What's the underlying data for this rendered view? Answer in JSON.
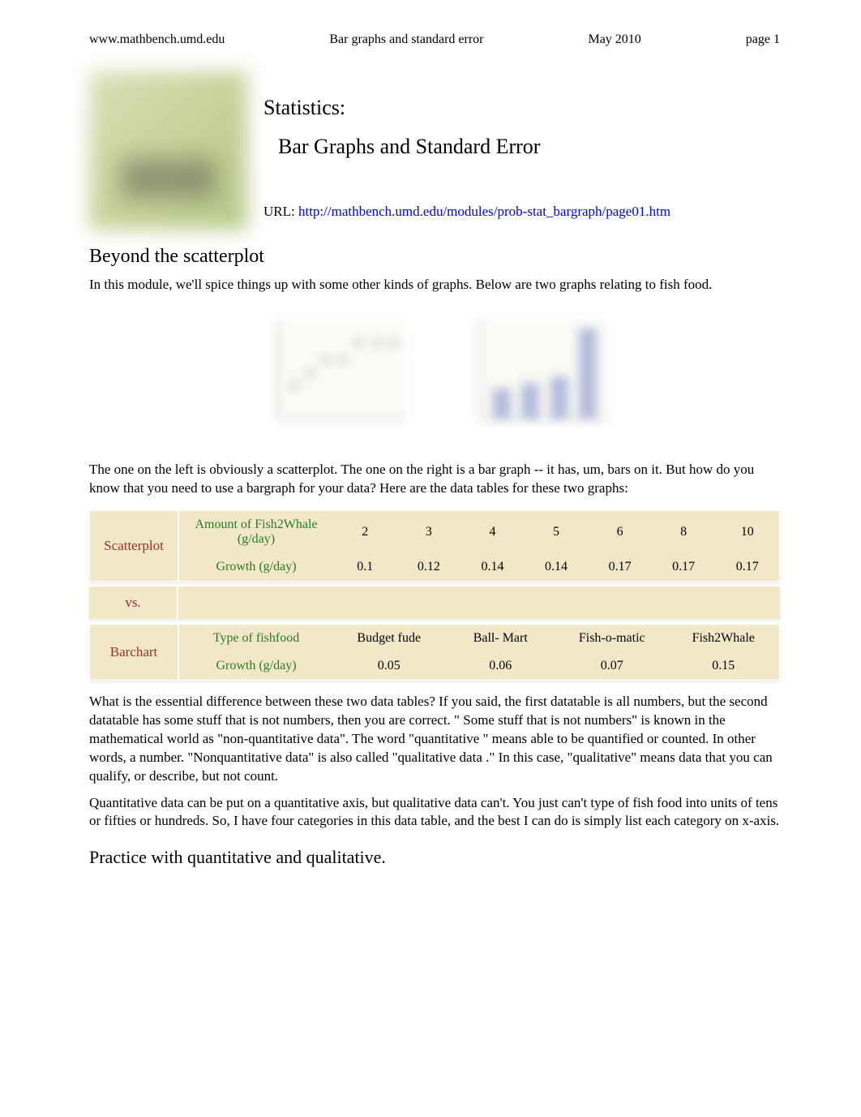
{
  "header": {
    "site": "www.mathbench.umd.edu",
    "topic": "Bar graphs and standard error",
    "date": "May 2010",
    "page": "page 1"
  },
  "title": {
    "line1": "Statistics:",
    "line2": "Bar Graphs and Standard Error",
    "url_label": "URL:  ",
    "url": "http://mathbench.umd.edu/modules/prob-stat_bargraph/page01.htm"
  },
  "section1": "Beyond the scatterplot",
  "para1": "In this module, we'll spice things up with some other kinds of graphs. Below are two graphs relating to fish food.",
  "scatter_preview": {
    "type": "scatter",
    "points": [
      {
        "x": 0.1,
        "y": 0.3
      },
      {
        "x": 0.22,
        "y": 0.42
      },
      {
        "x": 0.35,
        "y": 0.55
      },
      {
        "x": 0.48,
        "y": 0.55
      },
      {
        "x": 0.6,
        "y": 0.72
      },
      {
        "x": 0.75,
        "y": 0.72
      },
      {
        "x": 0.88,
        "y": 0.72
      }
    ],
    "marker_color": "#4a6a4a",
    "background_color": "#f8f6ee",
    "axis_color": "#888888"
  },
  "bar_preview": {
    "type": "bar",
    "values": [
      0.33,
      0.4,
      0.47,
      1.0
    ],
    "bar_color": "#6a7ab8",
    "background_color": "#f8f6ee",
    "axis_color": "#888888"
  },
  "para2": "The one on the left is obviously a scatterplot. The one on the right is a bar graph -- it has, um, bars on it. But how do you know that you need to use a bargraph for your data? Here are the data tables for these two graphs:",
  "tables": {
    "scatter": {
      "label": "Scatterplot",
      "row1_head": "Amount of Fish2Whale (g/day)",
      "row1": [
        "2",
        "3",
        "4",
        "5",
        "6",
        "8",
        "10"
      ],
      "row2_head": "Growth (g/day)",
      "row2": [
        "0.1",
        "0.12",
        "0.14",
        "0.14",
        "0.17",
        "0.17",
        "0.17"
      ]
    },
    "vs": "vs.",
    "bar": {
      "label": "Barchart",
      "row1_head": "Type of fishfood",
      "row1": [
        "Budget fude",
        "Ball- Mart",
        "Fish-o-matic",
        "Fish2Whale"
      ],
      "row2_head": "Growth (g/day)",
      "row2": [
        "0.05",
        "0.06",
        "0.07",
        "0.15"
      ]
    },
    "label_color": "#a03020",
    "rowhead_color": "#2a7a2a",
    "cell_color": "#000000",
    "background_color": "#f2e8c8"
  },
  "para3": "What is the essential difference between these two data tables? If you said, the first datatable is all numbers, but the second datatable has some stuff that is not numbers, then you are correct. \" Some stuff that is not numbers\" is known in the mathematical world as \"non-quantitative data\". The word \"quantitative  \" means able to be quantified or counted. In other words, a number. \"Nonquantitative data\" is also called \"qualitative data  .\" In this case, \"qualitative\" means data that you can qualify, or describe, but not count.",
  "para4": "Quantitative data can be put on a quantitative axis, but qualitative data can't. You just can't type of fish food into units of tens or fifties or hundreds. So, I have four categories in this data table, and the best I can do is simply list each category on x-axis.",
  "section2": "Practice with quantitative and qualitative."
}
